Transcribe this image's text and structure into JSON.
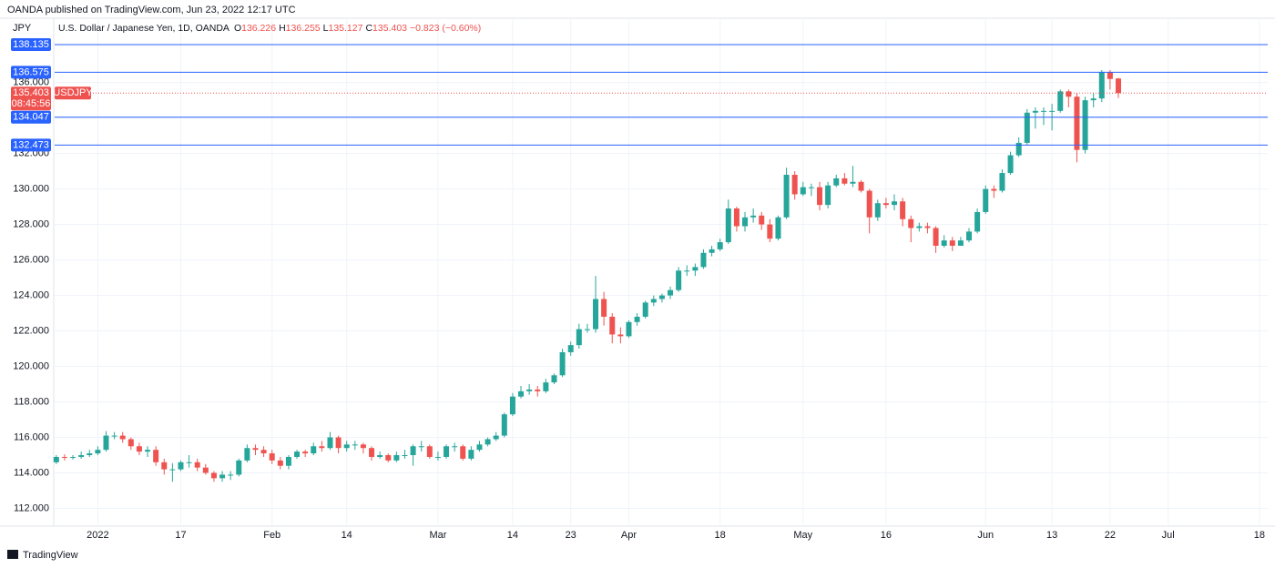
{
  "header": {
    "published": "OANDA published on TradingView.com, Jun 23, 2022 12:17 UTC",
    "footer": "TradingView"
  },
  "chart_data": {
    "type": "candlestick",
    "currency": "JPY",
    "title": "U.S. Dollar / Japanese Yen, 1D, OANDA",
    "ohlc_keys": [
      "O",
      "H",
      "L",
      "C"
    ],
    "change_label": "−0.823 (−0.60%)",
    "symbol": "USDJPY",
    "countdown": "08:45:56",
    "up_color": "#26a69a",
    "down_color": "#ef5350",
    "level_color": "#2962ff",
    "levels": [
      138.135,
      136.575,
      134.047,
      132.473
    ],
    "grid": true,
    "xlim": [
      -0.2,
      146
    ],
    "ylim": [
      111.0,
      138.7
    ],
    "yticks": [
      {
        "value": 112,
        "label": "112.000"
      },
      {
        "value": 114,
        "label": "114.000"
      },
      {
        "value": 116,
        "label": "116.000"
      },
      {
        "value": 118,
        "label": "118.000"
      },
      {
        "value": 120,
        "label": "120.000"
      },
      {
        "value": 122,
        "label": "122.000"
      },
      {
        "value": 124,
        "label": "124.000"
      },
      {
        "value": 126,
        "label": "126.000"
      },
      {
        "value": 128,
        "label": "128.000"
      },
      {
        "value": 130,
        "label": "130.000"
      },
      {
        "value": 132,
        "label": "132.000"
      },
      {
        "value": 134,
        "label": "134.000"
      },
      {
        "value": 136,
        "label": "136.000"
      }
    ],
    "xticks": [
      {
        "value": 5,
        "label": "2022"
      },
      {
        "value": 15,
        "label": "17"
      },
      {
        "value": 26,
        "label": "Feb"
      },
      {
        "value": 35,
        "label": "14"
      },
      {
        "value": 46,
        "label": "Mar"
      },
      {
        "value": 55,
        "label": "14"
      },
      {
        "value": 62,
        "label": "23"
      },
      {
        "value": 69,
        "label": "Apr"
      },
      {
        "value": 80,
        "label": "18"
      },
      {
        "value": 90,
        "label": "May"
      },
      {
        "value": 100,
        "label": "16"
      },
      {
        "value": 112,
        "label": "Jun"
      },
      {
        "value": 120,
        "label": "13"
      },
      {
        "value": 127,
        "label": "22"
      },
      {
        "value": 134,
        "label": "Jul"
      },
      {
        "value": 145,
        "label": "18"
      }
    ],
    "open": [
      114.6,
      114.9,
      114.85,
      114.9,
      115.0,
      115.1,
      115.3,
      116.1,
      116.1,
      115.9,
      115.5,
      115.2,
      115.3,
      114.6,
      114.2,
      114.2,
      114.6,
      114.6,
      114.3,
      114.0,
      113.7,
      113.9,
      113.9,
      114.7,
      115.4,
      115.3,
      115.1,
      114.7,
      114.4,
      114.9,
      115.2,
      115.1,
      115.5,
      115.4,
      116.0,
      115.4,
      115.6,
      115.6,
      115.4,
      114.9,
      115.0,
      114.7,
      115.0,
      115.0,
      115.5,
      115.5,
      114.9,
      114.9,
      115.5,
      115.5,
      114.8,
      115.3,
      115.6,
      115.9,
      116.1,
      117.3,
      118.3,
      118.6,
      118.7,
      118.6,
      119.1,
      119.5,
      120.8,
      121.2,
      122.1,
      122.1,
      123.8,
      122.8,
      121.8,
      121.7,
      122.5,
      122.8,
      123.6,
      123.8,
      124.0,
      124.3,
      125.4,
      125.4,
      125.6,
      126.4,
      126.6,
      127.0,
      128.9,
      127.9,
      128.4,
      128.5,
      128.0,
      127.2,
      128.4,
      130.8,
      129.7,
      130.1,
      130.1,
      129.1,
      130.2,
      130.6,
      130.3,
      130.4,
      129.9,
      128.4,
      129.2,
      129.1,
      129.3,
      128.3,
      127.8,
      127.9,
      127.8,
      126.8,
      127.1,
      126.8,
      127.1,
      127.6,
      128.7,
      130.0,
      129.9,
      130.9,
      131.9,
      132.6,
      134.3,
      134.4,
      134.4,
      134.4,
      135.5,
      135.2,
      132.2,
      135.0,
      135.1,
      136.6,
      136.226,
      null,
      null,
      null,
      null,
      null,
      null,
      null,
      null,
      null,
      null,
      null,
      null,
      null,
      null,
      null,
      null,
      null
    ],
    "high": [
      115.0,
      115.05,
      115.0,
      115.2,
      115.3,
      115.5,
      116.35,
      116.3,
      116.3,
      116.0,
      115.7,
      115.5,
      115.5,
      114.8,
      114.55,
      114.7,
      115.0,
      114.8,
      114.5,
      114.1,
      114.1,
      114.1,
      114.8,
      115.6,
      115.6,
      115.5,
      115.3,
      114.9,
      115.0,
      115.3,
      115.3,
      115.7,
      115.8,
      116.3,
      116.1,
      115.8,
      115.8,
      115.7,
      115.5,
      115.2,
      115.1,
      115.2,
      115.3,
      115.6,
      115.8,
      115.6,
      115.2,
      115.6,
      115.7,
      115.6,
      115.5,
      115.8,
      116.0,
      116.3,
      117.4,
      118.5,
      118.9,
      119.0,
      118.9,
      119.3,
      119.6,
      121.0,
      121.4,
      122.4,
      122.4,
      125.1,
      124.2,
      123.0,
      122.2,
      122.6,
      123.0,
      123.7,
      124.0,
      124.1,
      124.5,
      125.6,
      125.7,
      125.8,
      126.6,
      126.8,
      127.2,
      129.4,
      129.0,
      128.7,
      128.9,
      128.7,
      128.3,
      128.5,
      131.2,
      131.0,
      130.4,
      130.3,
      130.4,
      130.4,
      130.8,
      130.9,
      131.3,
      130.5,
      130.0,
      129.4,
      129.5,
      129.7,
      129.5,
      128.5,
      128.1,
      128.1,
      127.9,
      127.4,
      127.3,
      127.3,
      127.8,
      128.9,
      130.2,
      130.2,
      131.1,
      132.1,
      132.9,
      134.5,
      134.6,
      134.6,
      134.8,
      135.6,
      135.6,
      135.4,
      135.2,
      135.4,
      136.7,
      136.7,
      136.255,
      null,
      null,
      null,
      null,
      null,
      null,
      null,
      null,
      null,
      null,
      null,
      null,
      null,
      null,
      null,
      null,
      null
    ],
    "low": [
      114.5,
      114.7,
      114.75,
      114.8,
      114.9,
      115.0,
      115.2,
      115.9,
      115.7,
      115.3,
      115.0,
      114.9,
      114.4,
      113.9,
      113.5,
      114.1,
      114.3,
      114.1,
      113.9,
      113.5,
      113.5,
      113.6,
      113.8,
      114.6,
      115.0,
      114.9,
      114.5,
      114.2,
      114.2,
      114.8,
      114.9,
      115.0,
      115.2,
      115.3,
      115.1,
      115.2,
      115.3,
      115.1,
      114.7,
      114.8,
      114.6,
      114.6,
      114.8,
      114.4,
      115.2,
      114.8,
      114.7,
      114.8,
      115.2,
      114.7,
      114.7,
      115.2,
      115.5,
      115.8,
      116.0,
      117.2,
      118.2,
      118.4,
      118.3,
      118.5,
      119.0,
      119.4,
      120.6,
      121.0,
      121.9,
      121.9,
      122.3,
      121.3,
      121.3,
      121.6,
      122.3,
      122.7,
      123.4,
      123.6,
      123.8,
      124.2,
      125.1,
      125.1,
      125.5,
      126.2,
      126.5,
      126.9,
      127.6,
      127.6,
      128.1,
      127.7,
      127.0,
      127.1,
      128.3,
      129.4,
      129.6,
      129.6,
      128.8,
      128.9,
      130.1,
      130.2,
      130.1,
      129.8,
      127.5,
      128.2,
      128.9,
      128.8,
      127.9,
      127.0,
      127.6,
      127.5,
      126.4,
      126.7,
      126.5,
      126.8,
      127.0,
      127.5,
      128.6,
      129.5,
      129.8,
      130.8,
      131.8,
      132.5,
      133.4,
      133.6,
      133.3,
      134.3,
      134.6,
      131.5,
      132.0,
      134.6,
      134.9,
      135.6,
      135.127,
      null,
      null,
      null,
      null,
      null,
      null,
      null,
      null,
      null,
      null,
      null,
      null,
      null,
      null,
      null,
      null,
      null
    ],
    "close": [
      114.9,
      114.85,
      114.9,
      115.0,
      115.1,
      115.3,
      116.1,
      116.1,
      115.9,
      115.5,
      115.2,
      115.3,
      114.6,
      114.2,
      114.2,
      114.6,
      114.6,
      114.3,
      114.0,
      113.7,
      113.9,
      113.9,
      114.7,
      115.4,
      115.3,
      115.1,
      114.7,
      114.4,
      114.9,
      115.2,
      115.1,
      115.5,
      115.4,
      116.0,
      115.4,
      115.6,
      115.6,
      115.4,
      114.9,
      115.0,
      114.7,
      115.0,
      115.0,
      115.5,
      115.5,
      114.9,
      114.9,
      115.5,
      115.5,
      114.8,
      115.3,
      115.6,
      115.9,
      116.1,
      117.3,
      118.3,
      118.6,
      118.7,
      118.6,
      119.1,
      119.5,
      120.8,
      121.2,
      122.1,
      122.1,
      123.8,
      122.8,
      121.8,
      121.7,
      122.5,
      122.8,
      123.6,
      123.8,
      124.0,
      124.3,
      125.4,
      125.4,
      125.6,
      126.4,
      126.6,
      127.0,
      128.9,
      127.9,
      128.4,
      128.5,
      128.0,
      127.2,
      128.4,
      130.8,
      129.7,
      130.1,
      130.1,
      129.1,
      130.2,
      130.6,
      130.3,
      130.4,
      129.9,
      128.4,
      129.2,
      129.1,
      129.3,
      128.3,
      127.8,
      127.9,
      127.8,
      126.8,
      127.1,
      126.8,
      127.1,
      127.6,
      128.7,
      130.0,
      129.9,
      130.9,
      131.9,
      132.6,
      134.3,
      134.4,
      134.4,
      134.4,
      135.5,
      135.2,
      132.2,
      135.0,
      135.1,
      136.6,
      136.2,
      135.403,
      null,
      null,
      null,
      null,
      null,
      null,
      null,
      null,
      null,
      null,
      null,
      null,
      null,
      null,
      null,
      null,
      null
    ]
  }
}
